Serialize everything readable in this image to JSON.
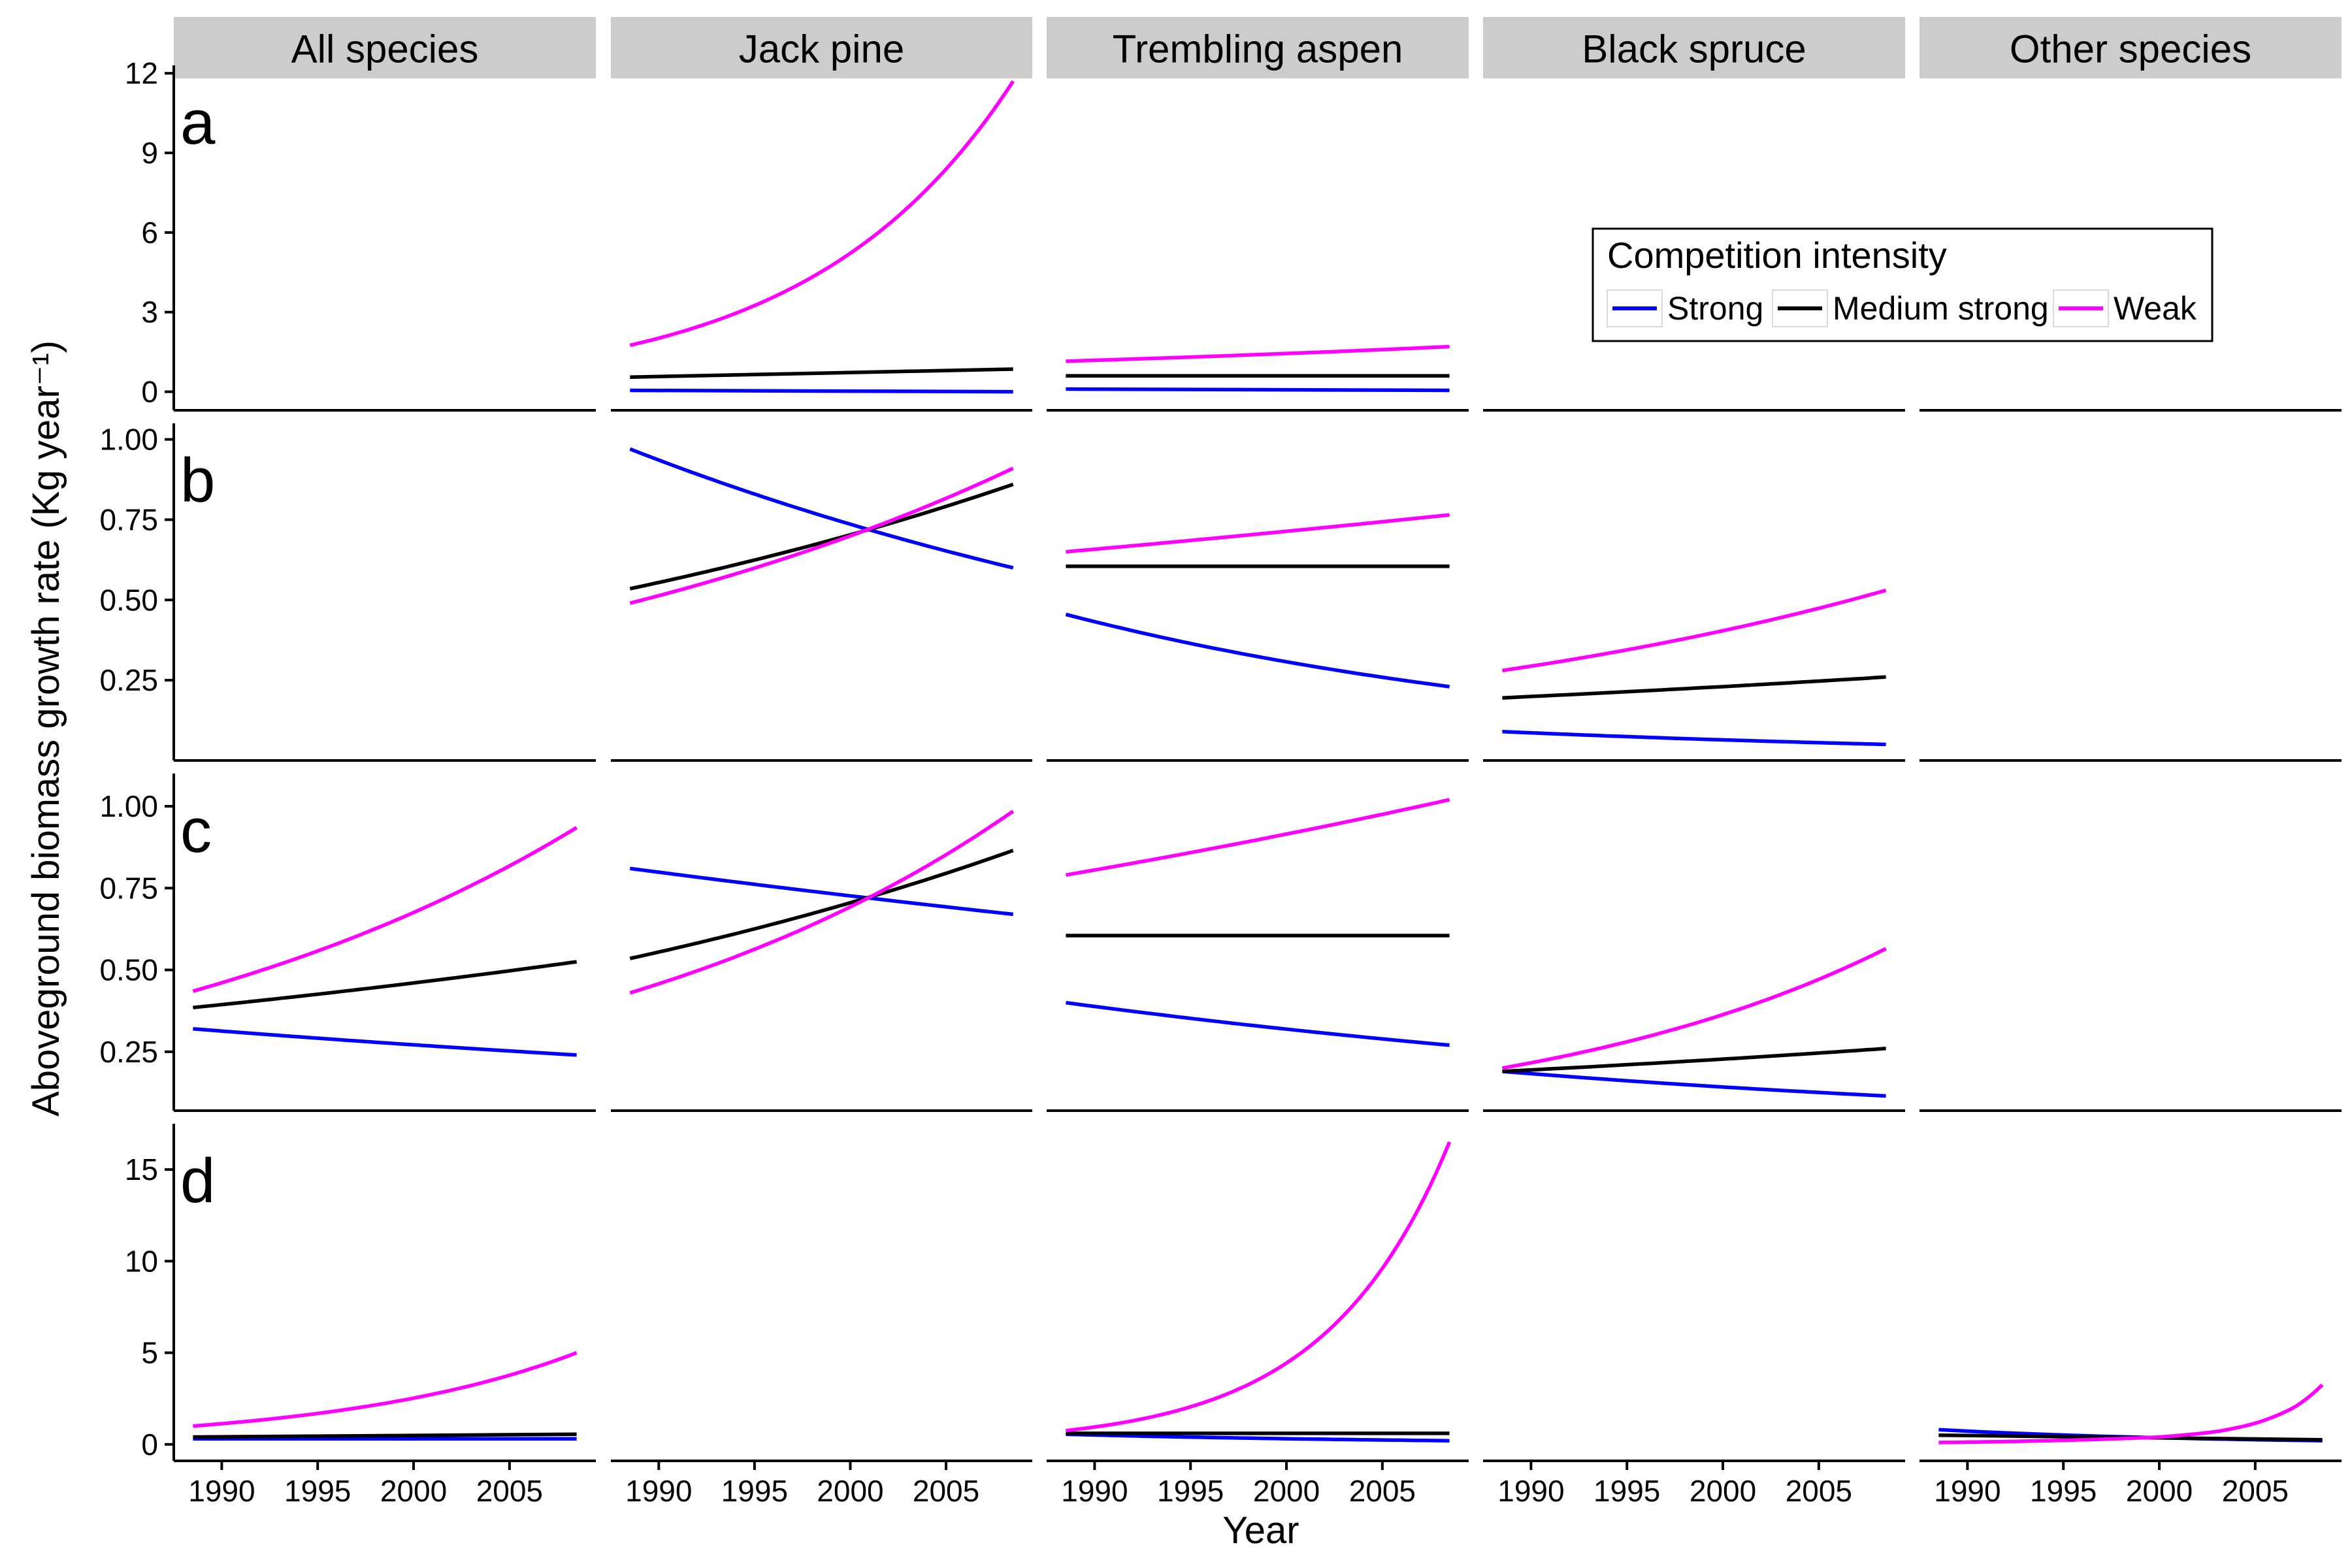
{
  "figure": {
    "ylabel": "Aboveground biomass growth rate (Kg year⁻¹)",
    "xlabel": "Year",
    "x_ticks": [
      1990,
      1995,
      2000,
      2005
    ],
    "x_range": [
      1987.5,
      2009.5
    ]
  },
  "legend": {
    "title": "Competition intensity",
    "placement": "top-right, inside row a",
    "items": [
      {
        "key": "strong",
        "label": "Strong",
        "color": "#0000FF"
      },
      {
        "key": "medium",
        "label": "Medium strong",
        "color": "#000000"
      },
      {
        "key": "weak",
        "label": "Weak",
        "color": "#FF00FF"
      }
    ]
  },
  "chart_data": {
    "type": "line",
    "facet_columns": [
      "All species",
      "Jack pine",
      "Trembling aspen",
      "Black spruce",
      "Other species"
    ],
    "rows": [
      {
        "letter": "a",
        "ylim": [
          -0.7,
          12.3
        ],
        "y_ticks": [
          {
            "value": 0,
            "label": "0"
          },
          {
            "value": 3,
            "label": "3"
          },
          {
            "value": 6,
            "label": "6"
          },
          {
            "value": 9,
            "label": "9"
          },
          {
            "value": 12,
            "label": "12"
          }
        ],
        "panels": [
          {
            "column": 0,
            "series": []
          },
          {
            "column": 1,
            "series": [
              {
                "key": "strong",
                "x": [
                  1988.5,
                  2008.5
                ],
                "y": [
                  0.05,
                  0.0
                ],
                "curve": "linear"
              },
              {
                "key": "medium",
                "x": [
                  1988.5,
                  2008.5
                ],
                "y": [
                  0.55,
                  0.85
                ],
                "curve": "linear"
              },
              {
                "key": "weak",
                "x": [
                  1988.5,
                  2008.5
                ],
                "y": [
                  1.75,
                  11.7
                ],
                "curve": "exp"
              }
            ]
          },
          {
            "column": 2,
            "series": [
              {
                "key": "strong",
                "x": [
                  1988.5,
                  2008.5
                ],
                "y": [
                  0.1,
                  0.05
                ],
                "curve": "linear"
              },
              {
                "key": "medium",
                "x": [
                  1988.5,
                  2008.5
                ],
                "y": [
                  0.6,
                  0.6
                ],
                "curve": "linear"
              },
              {
                "key": "weak",
                "x": [
                  1988.5,
                  2008.5
                ],
                "y": [
                  1.15,
                  1.7
                ],
                "curve": "exp"
              }
            ]
          },
          {
            "column": 3,
            "series": []
          },
          {
            "column": 4,
            "series": []
          }
        ]
      },
      {
        "letter": "b",
        "ylim": [
          0.0,
          1.05
        ],
        "y_ticks": [
          {
            "value": 0.25,
            "label": "0.25"
          },
          {
            "value": 0.5,
            "label": "0.50"
          },
          {
            "value": 0.75,
            "label": "0.75"
          },
          {
            "value": 1.0,
            "label": "1.00"
          }
        ],
        "panels": [
          {
            "column": 0,
            "series": []
          },
          {
            "column": 1,
            "series": [
              {
                "key": "strong",
                "x": [
                  1988.5,
                  2008.5
                ],
                "y": [
                  0.97,
                  0.6
                ],
                "curve": "exp"
              },
              {
                "key": "medium",
                "x": [
                  1988.5,
                  2008.5
                ],
                "y": [
                  0.535,
                  0.86
                ],
                "curve": "exp"
              },
              {
                "key": "weak",
                "x": [
                  1988.5,
                  2008.5
                ],
                "y": [
                  0.49,
                  0.91
                ],
                "curve": "exp"
              }
            ]
          },
          {
            "column": 2,
            "series": [
              {
                "key": "strong",
                "x": [
                  1988.5,
                  2008.5
                ],
                "y": [
                  0.455,
                  0.23
                ],
                "curve": "exp"
              },
              {
                "key": "medium",
                "x": [
                  1988.5,
                  2008.5
                ],
                "y": [
                  0.605,
                  0.605
                ],
                "curve": "linear"
              },
              {
                "key": "weak",
                "x": [
                  1988.5,
                  2008.5
                ],
                "y": [
                  0.65,
                  0.765
                ],
                "curve": "exp"
              }
            ]
          },
          {
            "column": 3,
            "series": [
              {
                "key": "strong",
                "x": [
                  1988.5,
                  2008.5
                ],
                "y": [
                  0.09,
                  0.05
                ],
                "curve": "exp"
              },
              {
                "key": "medium",
                "x": [
                  1988.5,
                  2008.5
                ],
                "y": [
                  0.195,
                  0.26
                ],
                "curve": "exp"
              },
              {
                "key": "weak",
                "x": [
                  1988.5,
                  2008.5
                ],
                "y": [
                  0.28,
                  0.53
                ],
                "curve": "exp"
              }
            ]
          },
          {
            "column": 4,
            "series": []
          }
        ]
      },
      {
        "letter": "c",
        "ylim": [
          0.07,
          1.1
        ],
        "y_ticks": [
          {
            "value": 0.25,
            "label": "0.25"
          },
          {
            "value": 0.5,
            "label": "0.50"
          },
          {
            "value": 0.75,
            "label": "0.75"
          },
          {
            "value": 1.0,
            "label": "1.00"
          }
        ],
        "panels": [
          {
            "column": 0,
            "series": [
              {
                "key": "strong",
                "x": [
                  1988.5,
                  2008.5
                ],
                "y": [
                  0.32,
                  0.24
                ],
                "curve": "exp"
              },
              {
                "key": "medium",
                "x": [
                  1988.5,
                  2008.5
                ],
                "y": [
                  0.385,
                  0.525
                ],
                "curve": "exp"
              },
              {
                "key": "weak",
                "x": [
                  1988.5,
                  2008.5
                ],
                "y": [
                  0.435,
                  0.935
                ],
                "curve": "exp"
              }
            ]
          },
          {
            "column": 1,
            "series": [
              {
                "key": "strong",
                "x": [
                  1988.5,
                  2008.5
                ],
                "y": [
                  0.81,
                  0.67
                ],
                "curve": "exp"
              },
              {
                "key": "medium",
                "x": [
                  1988.5,
                  2008.5
                ],
                "y": [
                  0.535,
                  0.865
                ],
                "curve": "exp"
              },
              {
                "key": "weak",
                "x": [
                  1988.5,
                  2008.5
                ],
                "y": [
                  0.43,
                  0.985
                ],
                "curve": "exp"
              }
            ]
          },
          {
            "column": 2,
            "series": [
              {
                "key": "strong",
                "x": [
                  1988.5,
                  2008.5
                ],
                "y": [
                  0.4,
                  0.27
                ],
                "curve": "exp"
              },
              {
                "key": "medium",
                "x": [
                  1988.5,
                  2008.5
                ],
                "y": [
                  0.605,
                  0.605
                ],
                "curve": "linear"
              },
              {
                "key": "weak",
                "x": [
                  1988.5,
                  2008.5
                ],
                "y": [
                  0.79,
                  1.02
                ],
                "curve": "exp"
              }
            ]
          },
          {
            "column": 3,
            "series": [
              {
                "key": "strong",
                "x": [
                  1988.5,
                  2008.5
                ],
                "y": [
                  0.19,
                  0.115
                ],
                "curve": "exp"
              },
              {
                "key": "medium",
                "x": [
                  1988.5,
                  2008.5
                ],
                "y": [
                  0.19,
                  0.26
                ],
                "curve": "exp"
              },
              {
                "key": "weak",
                "x": [
                  1988.5,
                  2008.5
                ],
                "y": [
                  0.2,
                  0.565
                ],
                "curve": "exp"
              }
            ]
          },
          {
            "column": 4,
            "series": []
          }
        ]
      },
      {
        "letter": "d",
        "ylim": [
          -0.9,
          17.5
        ],
        "y_ticks": [
          {
            "value": 0,
            "label": "0"
          },
          {
            "value": 5,
            "label": "5"
          },
          {
            "value": 10,
            "label": "10"
          },
          {
            "value": 15,
            "label": "15"
          }
        ],
        "panels": [
          {
            "column": 0,
            "series": [
              {
                "key": "strong",
                "x": [
                  1988.5,
                  2008.5
                ],
                "y": [
                  0.3,
                  0.3
                ],
                "curve": "linear"
              },
              {
                "key": "medium",
                "x": [
                  1988.5,
                  2008.5
                ],
                "y": [
                  0.4,
                  0.55
                ],
                "curve": "linear"
              },
              {
                "key": "weak",
                "x": [
                  1988.5,
                  2008.5
                ],
                "y": [
                  1.0,
                  5.0
                ],
                "curve": "exp"
              }
            ]
          },
          {
            "column": 1,
            "series": []
          },
          {
            "column": 2,
            "series": [
              {
                "key": "strong",
                "x": [
                  1988.5,
                  2008.5
                ],
                "y": [
                  0.55,
                  0.2
                ],
                "curve": "exp"
              },
              {
                "key": "medium",
                "x": [
                  1988.5,
                  2008.5
                ],
                "y": [
                  0.6,
                  0.6
                ],
                "curve": "linear"
              },
              {
                "key": "weak",
                "x": [
                  1988.5,
                  2008.5
                ],
                "y": [
                  0.75,
                  16.5
                ],
                "curve": "exp"
              }
            ]
          },
          {
            "column": 3,
            "series": []
          },
          {
            "column": 4,
            "series": [
              {
                "key": "strong",
                "x": [
                  1988.5,
                  2008.5
                ],
                "y": [
                  0.8,
                  0.2
                ],
                "curve": "exp"
              },
              {
                "key": "medium",
                "x": [
                  1988.5,
                  2008.5
                ],
                "y": [
                  0.5,
                  0.25
                ],
                "curve": "linear"
              },
              {
                "key": "weak",
                "x": [
                  1988.5,
                  1990,
                  1995,
                  2000,
                  2003,
                  2005,
                  2007,
                  2008.5
                ],
                "y": [
                  0.1,
                  0.12,
                  0.22,
                  0.4,
                  0.7,
                  1.15,
                  2.0,
                  3.25
                ],
                "curve": "points"
              }
            ]
          }
        ]
      }
    ]
  }
}
